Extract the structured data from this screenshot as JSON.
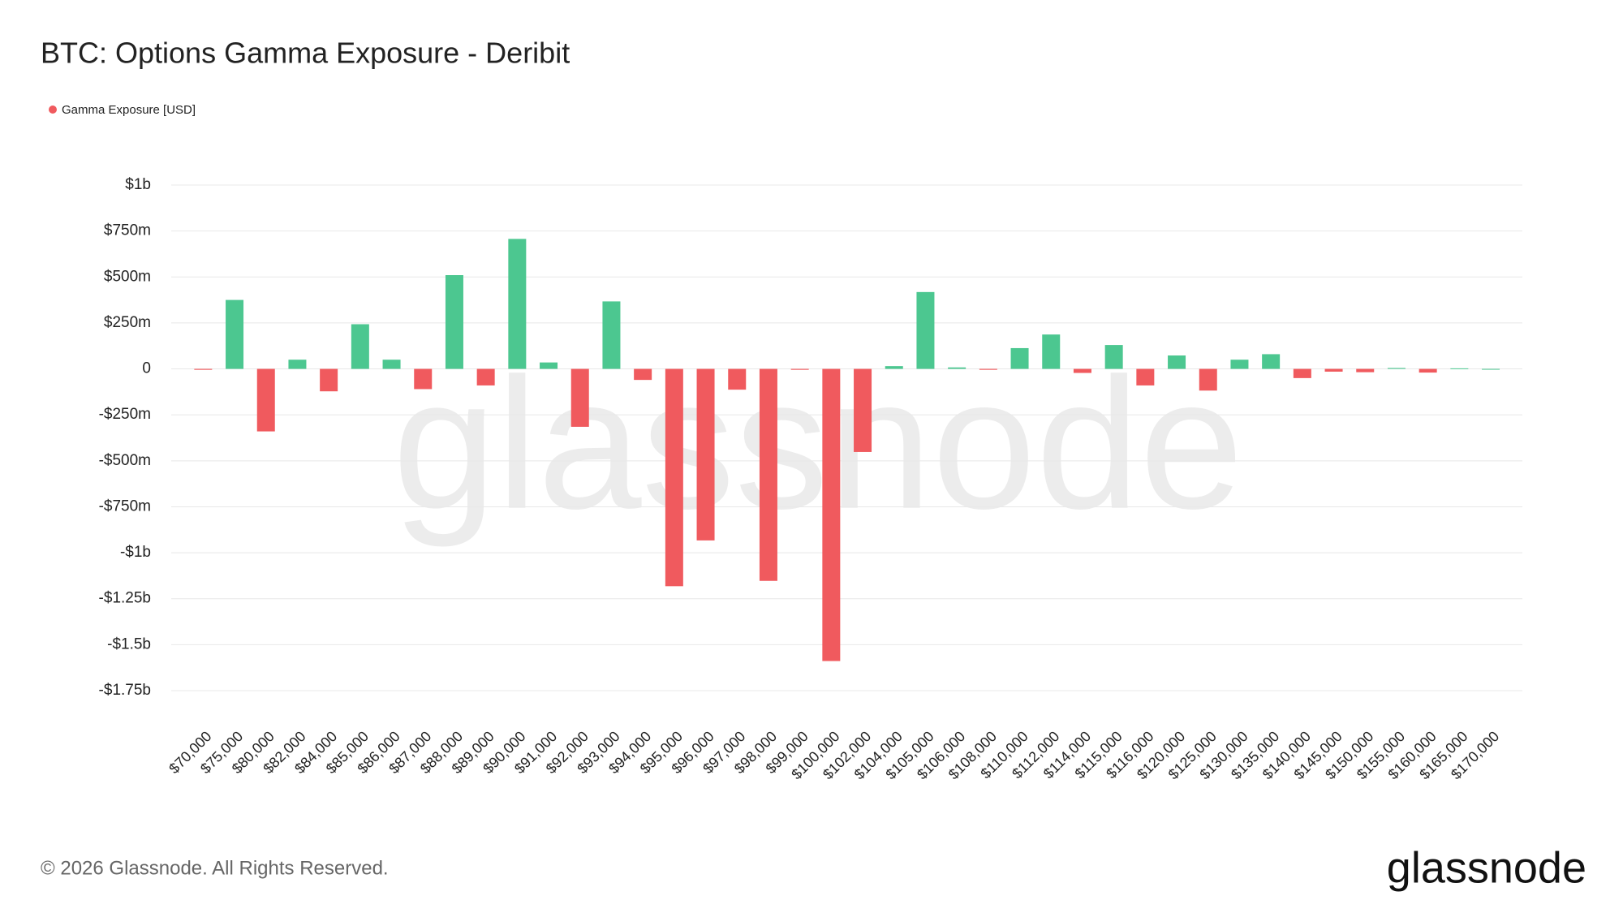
{
  "chart_data": {
    "type": "bar",
    "title": "BTC: Options Gamma Exposure - Deribit",
    "watermark": "glassnode",
    "footer": "© 2026 Glassnode. All Rights Reserved.",
    "logo": "glassnode",
    "legend": "top-left",
    "grid": true,
    "categories": [
      "$70,000",
      "$75,000",
      "$80,000",
      "$82,000",
      "$84,000",
      "$85,000",
      "$86,000",
      "$87,000",
      "$88,000",
      "$89,000",
      "$90,000",
      "$91,000",
      "$92,000",
      "$93,000",
      "$94,000",
      "$95,000",
      "$96,000",
      "$97,000",
      "$98,000",
      "$99,000",
      "$100,000",
      "$102,000",
      "$104,000",
      "$105,000",
      "$106,000",
      "$108,000",
      "$110,000",
      "$112,000",
      "$114,000",
      "$115,000",
      "$116,000",
      "$120,000",
      "$125,000",
      "$130,000",
      "$135,000",
      "$140,000",
      "$145,000",
      "$150,000",
      "$155,000",
      "$160,000",
      "$165,000",
      "$170,000"
    ],
    "series": [
      {
        "name": "Gamma Exposure [USD]",
        "color": "#f05a5e",
        "positive_color": "#4cc790",
        "values": [
          -5000000,
          375000000,
          -340000000,
          50000000,
          -122000000,
          243000000,
          50000000,
          -110000000,
          510000000,
          -90000000,
          707000000,
          35000000,
          -315000000,
          367000000,
          -60000000,
          -1182000000,
          -933000000,
          -113000000,
          -1153000000,
          -5000000,
          -1589000000,
          -452000000,
          15000000,
          418000000,
          8000000,
          -5000000,
          113000000,
          187000000,
          -22000000,
          130000000,
          -90000000,
          73000000,
          -118000000,
          50000000,
          80000000,
          -50000000,
          -15000000,
          -18000000,
          5000000,
          -20000000,
          3000000,
          0
        ]
      }
    ],
    "ylim": [
      -1750000000,
      1000000000
    ],
    "yticks": [
      {
        "value": 1000000000,
        "label": "$1b"
      },
      {
        "value": 750000000,
        "label": "$750m"
      },
      {
        "value": 500000000,
        "label": "$500m"
      },
      {
        "value": 250000000,
        "label": "$250m"
      },
      0,
      {
        "value": -250000000,
        "label": "-$250m"
      },
      {
        "value": -500000000,
        "label": "-$500m"
      },
      {
        "value": -750000000,
        "label": "-$750m"
      },
      {
        "value": -1000000000,
        "label": "-$1b"
      },
      {
        "value": -1250000000,
        "label": "-$1.25b"
      },
      {
        "value": -1500000000,
        "label": "-$1.5b"
      },
      {
        "value": -1750000000,
        "label": "-$1.75b"
      }
    ]
  }
}
